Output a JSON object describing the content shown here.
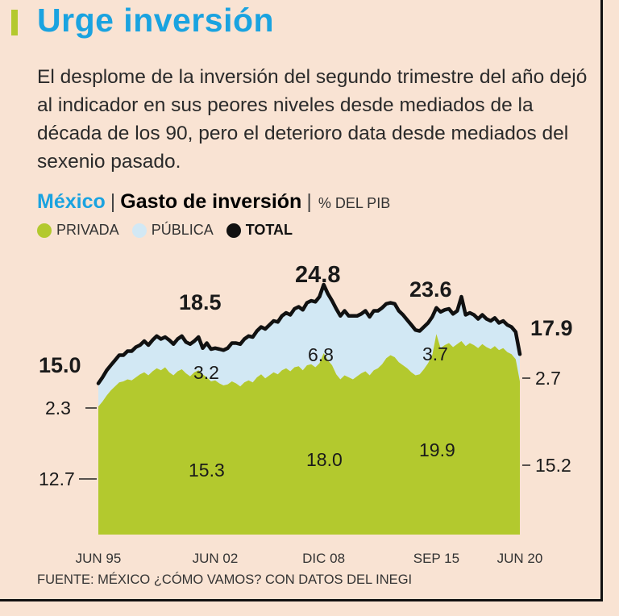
{
  "header": {
    "title": "Urge inversión",
    "intro": "El desplome de la inversión del segundo trimestre del año dejó al indicador en sus peores niveles desde mediados de la década de los 90, pero el deterioro data desde mediados del sexenio pasado."
  },
  "subhead": {
    "country": "México",
    "separator": "|",
    "measure": "Gasto de inversión",
    "separator2": "|",
    "unit": "% DEL PIB"
  },
  "legend": {
    "private": "PRIVADA",
    "public": "PÚBLICA",
    "total": "TOTAL"
  },
  "colors": {
    "private": "#b3c92e",
    "public": "#d2e8f4",
    "total": "#111111",
    "accent": "#1aa3e0",
    "title_bar": "#b3c92e",
    "background": "#f9e3d3"
  },
  "source": "FUENTE: MÉXICO ¿CÓMO VAMOS? CON DATOS DEL INEGI",
  "chart_data": {
    "type": "area",
    "title": "Gasto de inversión",
    "ylabel": "% DEL PIB",
    "xlabel": "",
    "ylim": [
      0,
      25
    ],
    "x_ticks": [
      "JUN 95",
      "JUN 02",
      "DIC 08",
      "SEP 15",
      "JUN 20"
    ],
    "x_tick_index": [
      0,
      28,
      54,
      81,
      101
    ],
    "series": [
      {
        "name": "PRIVADA",
        "values": [
          12.7,
          13.2,
          13.8,
          14.3,
          14.7,
          15.1,
          15.2,
          15.4,
          15.3,
          15.6,
          15.9,
          16.1,
          15.8,
          16.2,
          16.5,
          16.3,
          16.6,
          16.1,
          15.8,
          16.2,
          16.4,
          16.0,
          15.7,
          16.1,
          16.3,
          15.9,
          15.6,
          15.2,
          15.3,
          15.0,
          14.8,
          14.9,
          15.2,
          15.0,
          14.7,
          15.1,
          15.3,
          15.1,
          15.6,
          15.9,
          15.5,
          15.8,
          16.1,
          15.9,
          16.3,
          16.5,
          16.2,
          16.6,
          16.7,
          16.3,
          16.8,
          16.9,
          16.6,
          17.0,
          18.0,
          17.3,
          16.8,
          15.9,
          15.4,
          15.8,
          15.6,
          15.4,
          15.7,
          16.0,
          16.2,
          15.8,
          16.3,
          16.5,
          16.9,
          17.5,
          17.8,
          17.6,
          17.1,
          16.8,
          16.5,
          16.1,
          15.8,
          15.9,
          16.4,
          17.0,
          17.8,
          19.9,
          18.5,
          18.8,
          19.0,
          18.6,
          18.9,
          19.2,
          18.7,
          19.0,
          18.8,
          18.5,
          18.9,
          18.6,
          18.4,
          18.7,
          18.3,
          18.5,
          18.1,
          17.9,
          17.4,
          15.2
        ]
      },
      {
        "name": "PÚBLICA",
        "values": [
          2.3,
          2.4,
          2.5,
          2.5,
          2.6,
          2.7,
          2.6,
          2.8,
          2.9,
          3.0,
          2.9,
          3.1,
          3.0,
          3.1,
          3.2,
          3.1,
          3.0,
          3.2,
          3.1,
          3.2,
          3.3,
          3.1,
          3.2,
          3.1,
          3.3,
          3.2,
          3.1,
          3.2,
          3.2,
          3.4,
          3.5,
          3.6,
          3.8,
          4.0,
          4.2,
          4.3,
          4.4,
          4.5,
          4.6,
          4.7,
          4.9,
          5.0,
          5.1,
          5.2,
          5.4,
          5.5,
          5.6,
          5.8,
          5.9,
          6.0,
          6.2,
          6.3,
          6.5,
          6.6,
          6.8,
          6.6,
          6.4,
          6.5,
          6.3,
          6.4,
          6.1,
          6.3,
          6.0,
          5.9,
          6.0,
          5.8,
          5.9,
          5.7,
          5.6,
          5.4,
          5.2,
          5.3,
          5.1,
          5.0,
          4.8,
          4.7,
          4.5,
          4.3,
          4.2,
          4.0,
          3.8,
          3.7,
          3.6,
          3.5,
          3.4,
          3.3,
          3.3,
          3.2,
          3.1,
          3.0,
          3.0,
          2.9,
          2.9,
          2.8,
          2.8,
          2.8,
          2.7,
          2.7,
          2.7,
          2.7,
          2.7,
          2.7
        ]
      },
      {
        "name": "TOTAL",
        "values": [
          15.0,
          15.6,
          16.3,
          16.8,
          17.3,
          17.8,
          17.8,
          18.2,
          18.2,
          18.6,
          18.8,
          19.2,
          18.8,
          19.3,
          19.7,
          19.4,
          19.6,
          19.3,
          18.9,
          19.4,
          19.7,
          19.1,
          18.9,
          19.2,
          19.6,
          18.5,
          19.0,
          18.4,
          18.5,
          18.4,
          18.3,
          18.5,
          19.0,
          19.0,
          18.9,
          19.4,
          19.7,
          19.6,
          20.2,
          20.6,
          20.4,
          20.8,
          21.2,
          21.1,
          21.7,
          22.0,
          21.8,
          22.4,
          22.6,
          22.3,
          23.0,
          23.2,
          23.1,
          23.6,
          24.8,
          23.9,
          23.2,
          22.4,
          21.7,
          22.2,
          21.7,
          21.7,
          21.7,
          21.9,
          22.2,
          21.6,
          22.2,
          22.2,
          22.5,
          22.9,
          23.0,
          22.9,
          22.2,
          21.8,
          21.3,
          20.8,
          20.3,
          20.2,
          20.6,
          21.0,
          21.6,
          22.5,
          22.1,
          22.3,
          22.4,
          21.9,
          22.2,
          23.6,
          21.8,
          22.0,
          21.8,
          21.4,
          21.8,
          21.4,
          21.2,
          21.5,
          21.0,
          21.2,
          20.8,
          20.6,
          20.1,
          17.9
        ]
      }
    ],
    "annotations": [
      {
        "label": "15.0",
        "series": "TOTAL",
        "index": 0
      },
      {
        "label": "18.5",
        "series": "TOTAL",
        "index": 28
      },
      {
        "label": "24.8",
        "series": "TOTAL",
        "index": 54
      },
      {
        "label": "23.6",
        "series": "TOTAL",
        "index": 87
      },
      {
        "label": "17.9",
        "series": "TOTAL",
        "index": 101
      },
      {
        "label": "2.3",
        "series": "PÚBLICA",
        "index": 0
      },
      {
        "label": "3.2",
        "series": "PÚBLICA",
        "index": 28
      },
      {
        "label": "6.8",
        "series": "PÚBLICA",
        "index": 54
      },
      {
        "label": "3.7",
        "series": "PÚBLICA",
        "index": 81
      },
      {
        "label": "2.7",
        "series": "PÚBLICA",
        "index": 101
      },
      {
        "label": "12.7",
        "series": "PRIVADA",
        "index": 0
      },
      {
        "label": "15.3",
        "series": "PRIVADA",
        "index": 28
      },
      {
        "label": "18.0",
        "series": "PRIVADA",
        "index": 54
      },
      {
        "label": "19.9",
        "series": "PRIVADA",
        "index": 81
      },
      {
        "label": "15.2",
        "series": "PRIVADA",
        "index": 101
      }
    ]
  }
}
